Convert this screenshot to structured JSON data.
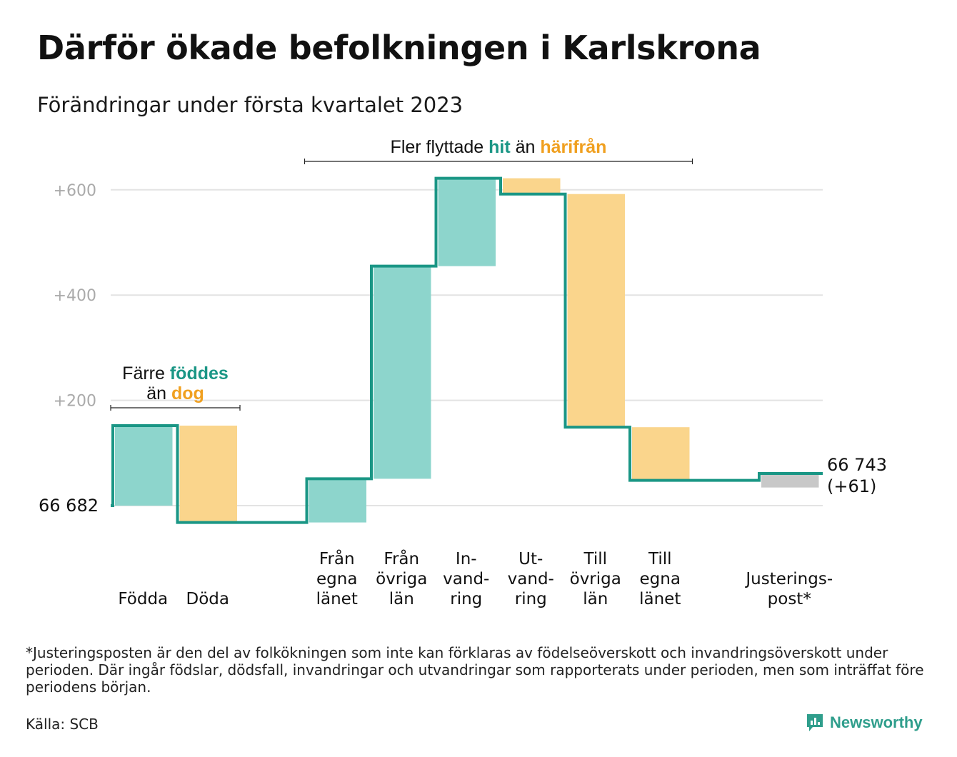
{
  "title": "Därför ökade befolkningen i Karlskrona",
  "subtitle": "Förändringar under första kvartalet 2023",
  "footnote": "*Justeringsposten är den del av folkökningen som inte kan förklaras av födelseöverskott och invandringsöverskott under perioden. Där ingår födslar, dödsfall, invandringar och utvandringar som rapporterats under perioden, men som inträffat före periodens början.",
  "source": "Källa: SCB",
  "brand": "Newsworthy",
  "colors": {
    "increase": "#8dd5cc",
    "decrease": "#fad58c",
    "adjustment": "#c8c8c8",
    "line": "#1a9685",
    "teal_text": "#1a9685",
    "orange_text": "#f0a020",
    "grid": "#e3e3e3",
    "tick": "#aaaaaa"
  },
  "chart_data": {
    "type": "waterfall",
    "start_value": 66682,
    "start_label": "66 682",
    "end_label_line1": "66 743",
    "end_label_line2": "(+61)",
    "y_ticks": [
      {
        "value": 200,
        "label": "+200"
      },
      {
        "value": 400,
        "label": "+400"
      },
      {
        "value": 600,
        "label": "+600"
      }
    ],
    "ylim": [
      -40,
      660
    ],
    "steps": [
      {
        "label": [
          "",
          "",
          "Födda"
        ],
        "change": 152,
        "kind": "increase"
      },
      {
        "label": [
          "",
          "",
          "Döda"
        ],
        "change": -184,
        "kind": "decrease"
      },
      {
        "label": [],
        "change": 0,
        "kind": "gap"
      },
      {
        "label": [
          "Från",
          "egna",
          "länet"
        ],
        "change": 83,
        "kind": "increase"
      },
      {
        "label": [
          "Från",
          "övriga",
          "län"
        ],
        "change": 404,
        "kind": "increase"
      },
      {
        "label": [
          "In-",
          "vand-",
          "ring"
        ],
        "change": 167,
        "kind": "increase"
      },
      {
        "label": [
          "Ut-",
          "vand-",
          "ring"
        ],
        "change": -30,
        "kind": "decrease"
      },
      {
        "label": [
          "Till",
          "övriga",
          "län"
        ],
        "change": -443,
        "kind": "decrease"
      },
      {
        "label": [
          "Till",
          "egna",
          "länet"
        ],
        "change": -101,
        "kind": "decrease"
      },
      {
        "label": [],
        "change": 0,
        "kind": "gap"
      },
      {
        "label": [
          "",
          "Justerings-",
          "post*"
        ],
        "change": 13,
        "kind": "adjustment"
      }
    ],
    "annotations": [
      {
        "from_step": 0,
        "to_step": 1,
        "lines": [
          [
            "Färre ",
            "föddes"
          ],
          [
            "än ",
            "dog"
          ]
        ]
      },
      {
        "from_step": 3,
        "to_step": 8,
        "lines": [
          [
            "Fler flyttade ",
            "hit",
            " än ",
            "härifrån"
          ]
        ]
      }
    ]
  }
}
